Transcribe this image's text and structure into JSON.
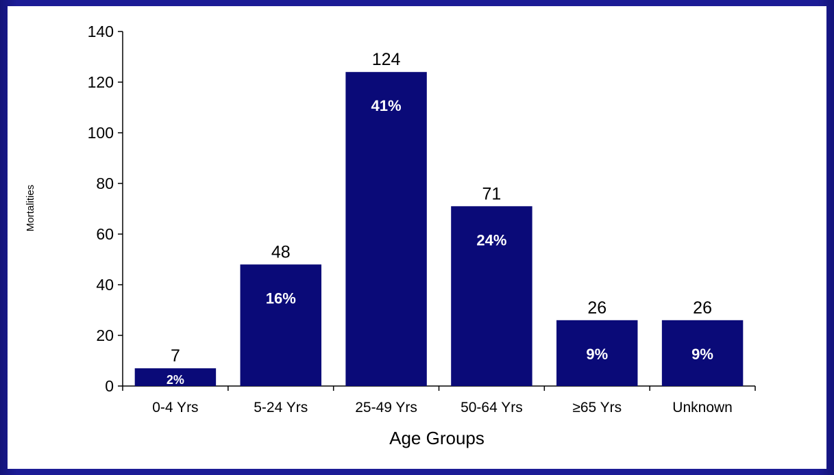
{
  "colors": {
    "slide_background": "#1c1c96",
    "bar": "#0a0a78",
    "bar_text": "#ffffff"
  },
  "chart_data": {
    "type": "bar",
    "categories": [
      "0-4 Yrs",
      "5-24 Yrs",
      "25-49 Yrs",
      "50-64 Yrs",
      "≥65  Yrs",
      "Unknown"
    ],
    "values": [
      7,
      48,
      124,
      71,
      26,
      26
    ],
    "percent_labels": [
      "2%",
      "16%",
      "41%",
      "24%",
      "9%",
      "9%"
    ],
    "xlabel": "Age Groups",
    "ylabel": "Mortalities",
    "ylim": [
      0,
      140
    ],
    "yticks": [
      0,
      20,
      40,
      60,
      80,
      100,
      120,
      140
    ],
    "grid": false,
    "legend": "none"
  }
}
